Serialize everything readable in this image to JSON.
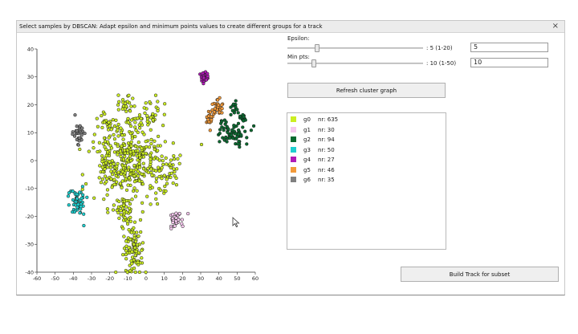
{
  "window": {
    "title": "Select samples by DBSCAN: Adapt epsilon and minimum points values to create different groups for a track",
    "close_glyph": "×"
  },
  "epsilon": {
    "label": "Epsilon:",
    "range_text": ": 5 (1-20)",
    "value": "5",
    "min": 1,
    "max": 20,
    "current": 5
  },
  "minpts": {
    "label": "Min pts:",
    "range_text": ": 10 (1-50)",
    "value": "10",
    "min": 1,
    "max": 50,
    "current": 10
  },
  "buttons": {
    "refresh": "Refresh cluster graph",
    "build": "Build Track for subset"
  },
  "groups": [
    {
      "name": "g0",
      "count": "nr: 635",
      "color": "#ccee22"
    },
    {
      "name": "g1",
      "count": "nr: 30",
      "color": "#f5c8ee"
    },
    {
      "name": "g2",
      "count": "nr: 94",
      "color": "#0a6a30"
    },
    {
      "name": "g3",
      "count": "nr: 50",
      "color": "#1ecfcf"
    },
    {
      "name": "g4",
      "count": "nr: 27",
      "color": "#b01ab8"
    },
    {
      "name": "g5",
      "count": "nr: 46",
      "color": "#f39a3a"
    },
    {
      "name": "g6",
      "count": "nr: 35",
      "color": "#808080"
    }
  ],
  "chart_data": {
    "type": "scatter",
    "xlim": [
      -60,
      60
    ],
    "ylim": [
      -40,
      40
    ],
    "xticks": [
      "-60",
      "-50",
      "-40",
      "-30",
      "-20",
      "-10",
      "0",
      "10",
      "20",
      "30",
      "40",
      "50",
      "60"
    ],
    "yticks": [
      "40",
      "30",
      "20",
      "10",
      "0",
      "-10",
      "-20",
      "-30",
      "-40"
    ],
    "grid": false,
    "series": [
      {
        "group": "g0",
        "count": 635,
        "color": "#ccee22",
        "blobs": [
          {
            "cx": -10,
            "cy": 0,
            "sx": 10,
            "sy": 7,
            "n": 380
          },
          {
            "cx": -11,
            "cy": 20,
            "sx": 2.2,
            "sy": 1.8,
            "n": 25
          },
          {
            "cx": 2,
            "cy": 17,
            "sx": 3.5,
            "sy": 3,
            "n": 40
          },
          {
            "cx": -22,
            "cy": 13,
            "sx": 2.5,
            "sy": 1.8,
            "n": 20
          },
          {
            "cx": 12,
            "cy": -5,
            "sx": 3.5,
            "sy": 4.5,
            "n": 40
          },
          {
            "cx": -12,
            "cy": -17,
            "sx": 2,
            "sy": 3,
            "n": 40
          },
          {
            "cx": -7,
            "cy": -32,
            "sx": 3,
            "sy": 4.5,
            "n": 90
          }
        ]
      },
      {
        "group": "g1",
        "count": 30,
        "color": "#f5c8ee",
        "blobs": [
          {
            "cx": 16,
            "cy": -21,
            "sx": 2,
            "sy": 1.6,
            "n": 30
          }
        ]
      },
      {
        "group": "g2",
        "count": 94,
        "color": "#0a6a30",
        "blobs": [
          {
            "cx": 48,
            "cy": 9,
            "sx": 4.5,
            "sy": 1.8,
            "n": 60
          },
          {
            "cx": 49,
            "cy": 18,
            "sx": 1.2,
            "sy": 2,
            "n": 14
          },
          {
            "cx": 53,
            "cy": 15,
            "sx": 1,
            "sy": 1.5,
            "n": 12
          },
          {
            "cx": 42,
            "cy": 13,
            "sx": 1,
            "sy": 1,
            "n": 8
          }
        ]
      },
      {
        "group": "g3",
        "count": 50,
        "color": "#1ecfcf",
        "blobs": [
          {
            "cx": -38,
            "cy": -14,
            "sx": 2.2,
            "sy": 2.8,
            "n": 50
          }
        ]
      },
      {
        "group": "g4",
        "count": 27,
        "color": "#b01ab8",
        "blobs": [
          {
            "cx": 32,
            "cy": 30,
            "sx": 1.1,
            "sy": 1.2,
            "n": 27
          }
        ]
      },
      {
        "group": "g5",
        "count": 46,
        "color": "#f39a3a",
        "blobs": [
          {
            "cx": 39,
            "cy": 19,
            "sx": 1.6,
            "sy": 1.5,
            "n": 26
          },
          {
            "cx": 35,
            "cy": 15,
            "sx": 1.2,
            "sy": 1.6,
            "n": 20
          }
        ]
      },
      {
        "group": "g6",
        "count": 35,
        "color": "#808080",
        "blobs": [
          {
            "cx": -37,
            "cy": 10,
            "sx": 1.6,
            "sy": 1.9,
            "n": 35
          }
        ]
      }
    ]
  }
}
